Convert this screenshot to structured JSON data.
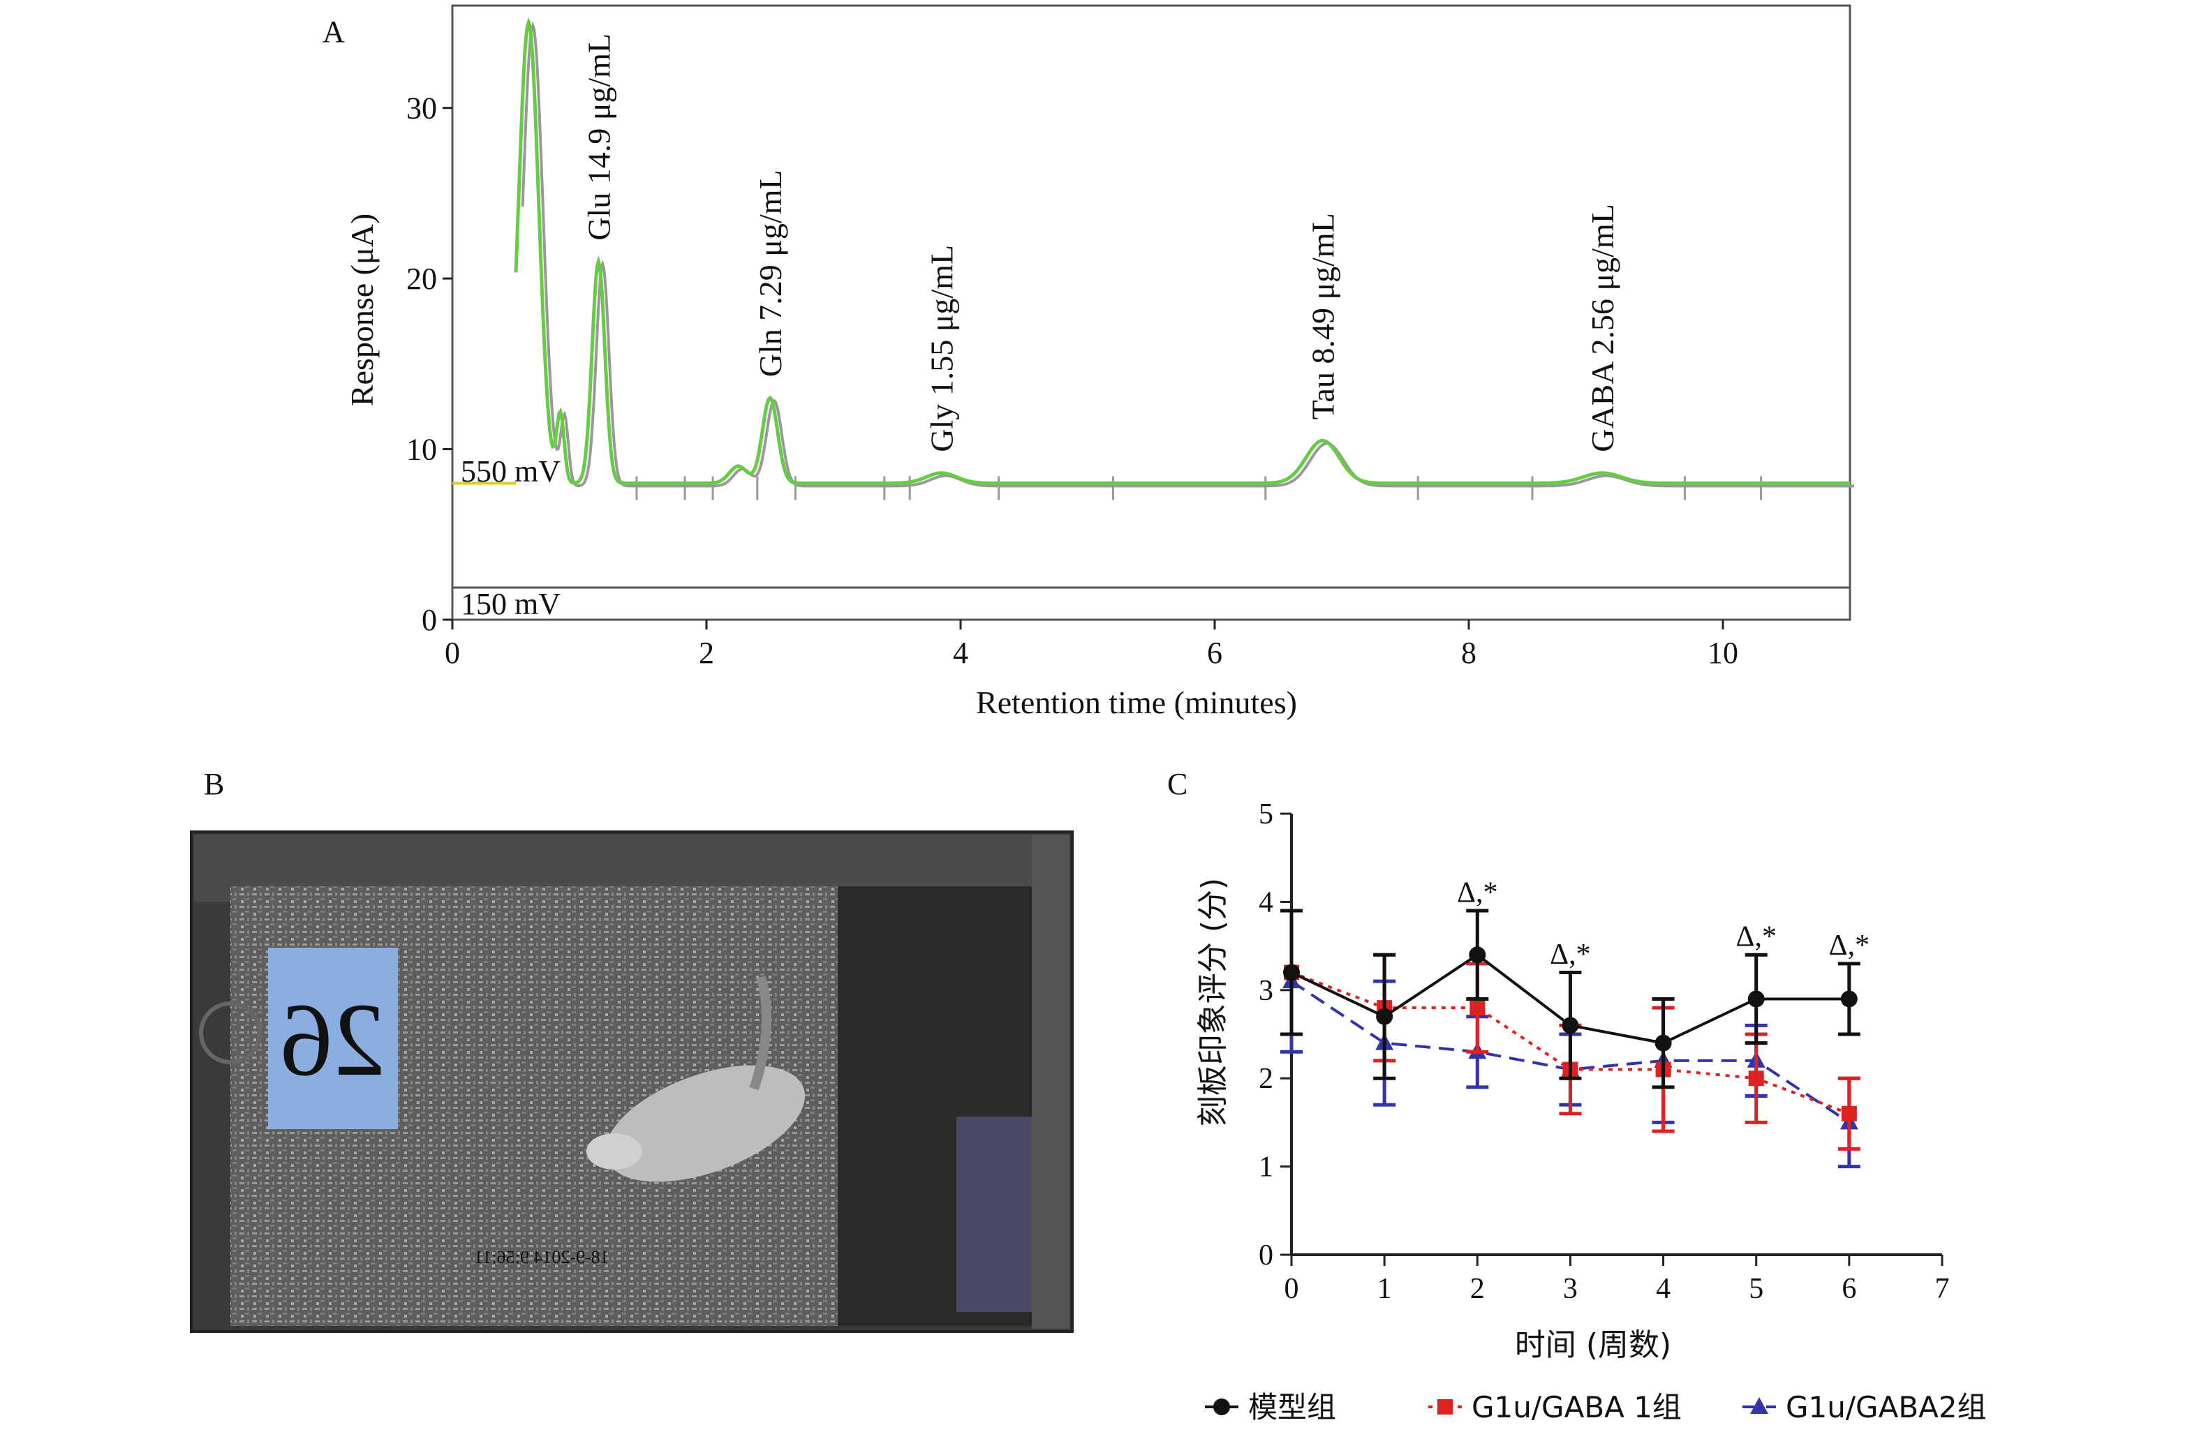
{
  "panels": {
    "a": {
      "label": "A"
    },
    "b": {
      "label": "B"
    },
    "c": {
      "label": "C"
    }
  },
  "photo": {
    "cage_number": "26",
    "timestamp": "18-9-2014  9:56:11"
  },
  "chart_data": [
    {
      "type": "line",
      "xlabel": "Retention time (minutes)",
      "ylabel": "Response (μA)",
      "xlim": [
        0,
        11
      ],
      "ylim": [
        0,
        36
      ],
      "x_ticks": [
        0,
        2,
        4,
        6,
        8,
        10
      ],
      "y_ticks": [
        0,
        10,
        20,
        30
      ],
      "voltage_labels": [
        "550 mV",
        "150 mV"
      ],
      "baseline": 8,
      "peaks": [
        {
          "x": 0.6,
          "y": 35
        },
        {
          "x": 0.85,
          "y": 12
        },
        {
          "x": 1.15,
          "y": 21
        },
        {
          "x": 2.25,
          "y": 9
        },
        {
          "x": 2.5,
          "y": 13
        },
        {
          "x": 3.85,
          "y": 8.6
        },
        {
          "x": 6.85,
          "y": 10.5
        },
        {
          "x": 9.05,
          "y": 8.6
        }
      ],
      "peak_labels": [
        {
          "text": "Glu 14.9 μg/mL",
          "x": 1.15
        },
        {
          "text": "Gln 7.29 μg/mL",
          "x": 2.5
        },
        {
          "text": "Gly 1.55 μg/mL",
          "x": 3.85
        },
        {
          "text": "Tau 8.49 μg/mL",
          "x": 6.85
        },
        {
          "text": "GABA 2.56 μg/mL",
          "x": 9.05
        }
      ],
      "series_colors": {
        "trace": "#66cc44",
        "reference": "#999999",
        "start_segment": "#ddcc22"
      }
    },
    {
      "type": "line",
      "xlabel": "时间 (周数)",
      "ylabel": "刻板印象评分 (分)",
      "xlim": [
        0,
        7
      ],
      "ylim": [
        0,
        5
      ],
      "x_ticks": [
        0,
        1,
        2,
        3,
        4,
        5,
        6,
        7
      ],
      "y_ticks": [
        0,
        1,
        2,
        3,
        4,
        5
      ],
      "x": [
        0,
        1,
        2,
        3,
        4,
        5,
        6
      ],
      "series": [
        {
          "name": "模型组",
          "color": "#111111",
          "marker": "circle",
          "dash": "solid",
          "values": [
            3.2,
            2.7,
            3.4,
            2.6,
            2.4,
            2.9,
            2.9
          ],
          "errors": [
            0.7,
            0.7,
            0.5,
            0.6,
            0.5,
            0.5,
            0.4
          ]
        },
        {
          "name": "G1u/GABA 1组",
          "color": "#dd2222",
          "marker": "square",
          "dash": "dotted",
          "values": [
            3.2,
            2.8,
            2.8,
            2.1,
            2.1,
            2.0,
            1.6
          ],
          "errors": [
            0.7,
            0.6,
            0.5,
            0.5,
            0.7,
            0.5,
            0.4
          ]
        },
        {
          "name": "G1u/GABA2组",
          "color": "#3333aa",
          "marker": "triangle",
          "dash": "dashed",
          "values": [
            3.1,
            2.4,
            2.3,
            2.1,
            2.2,
            2.2,
            1.5
          ],
          "errors": [
            0.8,
            0.7,
            0.4,
            0.4,
            0.7,
            0.4,
            0.5
          ]
        }
      ],
      "annotations": [
        {
          "text": "Δ,*",
          "x": 2,
          "y": 4.0
        },
        {
          "text": "Δ,*",
          "x": 3,
          "y": 3.3
        },
        {
          "text": "Δ,*",
          "x": 5,
          "y": 3.5
        },
        {
          "text": "Δ,*",
          "x": 6,
          "y": 3.4
        }
      ],
      "legend": "bottom"
    }
  ]
}
